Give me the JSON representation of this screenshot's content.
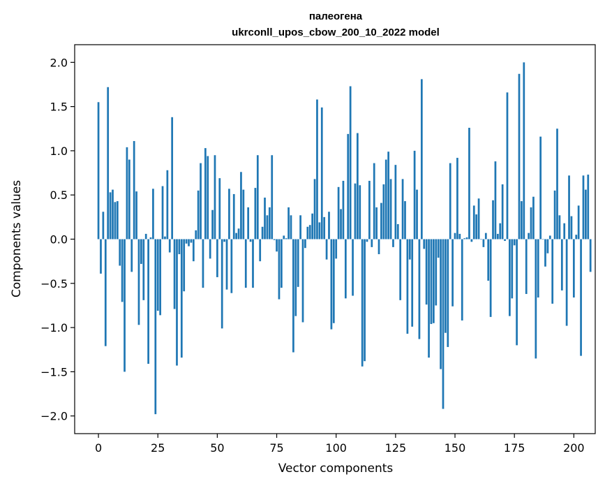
{
  "chart_data": {
    "type": "bar",
    "title_line1": "палеогена",
    "title_line2": "ukrconll_upos_cbow_200_10_2022 model",
    "xlabel": "Vector components",
    "ylabel": "Components values",
    "xlim": [
      -10,
      209
    ],
    "ylim": [
      -2.2,
      2.2
    ],
    "xticks": [
      0,
      25,
      50,
      75,
      100,
      125,
      150,
      175,
      200
    ],
    "yticks": [
      -2.0,
      -1.5,
      -1.0,
      -0.5,
      0.0,
      0.5,
      1.0,
      1.5,
      2.0
    ],
    "xtick_labels": [
      "0",
      "25",
      "50",
      "75",
      "100",
      "125",
      "150",
      "175",
      "200"
    ],
    "ytick_labels": [
      "−2.0",
      "−1.5",
      "−1.0",
      "−0.5",
      "0.0",
      "0.5",
      "1.0",
      "1.5",
      "2.0"
    ],
    "bar_color": "#1f77b4",
    "values": [
      1.55,
      -0.39,
      0.31,
      -1.21,
      1.72,
      0.53,
      0.56,
      0.42,
      0.43,
      -0.3,
      -0.71,
      -1.5,
      1.04,
      0.9,
      -0.37,
      1.11,
      0.54,
      -0.97,
      -0.28,
      -0.69,
      0.06,
      -1.41,
      0.02,
      0.57,
      -1.98,
      -0.81,
      -0.86,
      0.6,
      0.03,
      0.78,
      -0.15,
      1.38,
      -0.79,
      -1.43,
      -0.17,
      -1.34,
      -0.59,
      -0.05,
      -0.08,
      -0.04,
      -0.25,
      0.1,
      0.55,
      0.86,
      -0.55,
      1.03,
      0.94,
      -0.22,
      0.33,
      0.95,
      -0.43,
      0.69,
      -1.01,
      -0.03,
      -0.57,
      0.57,
      -0.61,
      0.51,
      0.07,
      0.12,
      0.76,
      0.56,
      -0.55,
      0.36,
      -0.03,
      -0.55,
      0.58,
      0.95,
      -0.25,
      0.14,
      0.47,
      0.27,
      0.36,
      0.95,
      -0.01,
      -0.14,
      -0.68,
      -0.55,
      0.04,
      0.01,
      0.36,
      0.27,
      -1.28,
      -0.87,
      -0.54,
      0.27,
      -0.94,
      -0.1,
      0.14,
      0.16,
      0.29,
      0.68,
      1.58,
      0.19,
      1.49,
      0.25,
      -0.23,
      0.31,
      -1.02,
      -0.95,
      -0.22,
      0.59,
      0.34,
      0.66,
      -0.67,
      1.19,
      1.73,
      -0.64,
      0.63,
      1.2,
      0.61,
      -1.44,
      -1.38,
      -0.03,
      0.66,
      -0.09,
      0.86,
      0.36,
      -0.17,
      0.41,
      0.62,
      0.9,
      0.99,
      0.68,
      -0.09,
      0.84,
      0.17,
      -0.69,
      0.68,
      0.43,
      -1.07,
      -0.23,
      -0.99,
      1.0,
      0.56,
      -1.13,
      1.81,
      -0.11,
      -0.74,
      -1.34,
      -0.96,
      -0.95,
      -0.75,
      -0.21,
      -1.47,
      -1.92,
      -1.06,
      -1.22,
      0.86,
      -0.76,
      0.07,
      0.92,
      0.06,
      -0.92,
      0.01,
      0.02,
      1.26,
      -0.03,
      0.38,
      0.28,
      0.46,
      0.0,
      -0.09,
      0.07,
      -0.47,
      -0.88,
      0.44,
      0.88,
      0.06,
      0.18,
      0.62,
      -0.02,
      1.66,
      -0.87,
      -0.67,
      -0.07,
      -1.2,
      1.87,
      0.43,
      2.0,
      -0.62,
      0.07,
      0.36,
      0.48,
      -1.35,
      -0.66,
      1.16,
      0.0,
      -0.31,
      -0.16,
      0.04,
      -0.73,
      0.55,
      1.25,
      0.27,
      -0.58,
      0.18,
      -0.98,
      0.72,
      0.26,
      -0.66,
      0.05,
      0.38,
      -1.32,
      0.72,
      0.56,
      0.73,
      -0.37
    ]
  }
}
